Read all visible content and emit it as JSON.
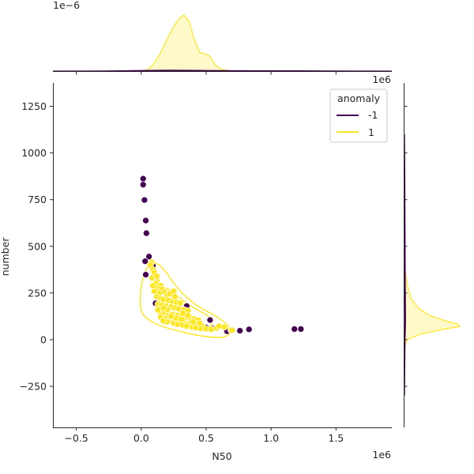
{
  "chart_data": {
    "type": "scatter",
    "xlabel": "N50",
    "ylabel": "number",
    "x_offset_label": "1e6",
    "y_offset_label": "",
    "x_ticks": [
      -0.5,
      0.0,
      0.5,
      1.0,
      1.5
    ],
    "x_tick_labels": [
      "−0.5",
      "0.0",
      "0.5",
      "1.0",
      "1.5"
    ],
    "y_ticks": [
      -250,
      0,
      250,
      500,
      750,
      1000,
      1250
    ],
    "y_tick_labels": [
      "−250",
      "0",
      "250",
      "500",
      "750",
      "1000",
      "1250"
    ],
    "xlim": [
      -0.68,
      1.93
    ],
    "ylim": [
      -470,
      1375
    ],
    "grid": false,
    "legend": {
      "title": "anomaly",
      "placement": "top-right",
      "entries": [
        {
          "label": "-1",
          "color": "#440154"
        },
        {
          "label": "1",
          "color": "#fde725"
        }
      ]
    },
    "series": [
      {
        "name": "-1",
        "color": "#440154",
        "points": [
          [
            0.015,
            862
          ],
          [
            0.015,
            830
          ],
          [
            0.025,
            748
          ],
          [
            0.035,
            638
          ],
          [
            0.04,
            570
          ],
          [
            0.06,
            445
          ],
          [
            0.03,
            420
          ],
          [
            0.035,
            348
          ],
          [
            0.09,
            395
          ],
          [
            0.35,
            180
          ],
          [
            0.53,
            105
          ],
          [
            0.66,
            45
          ],
          [
            0.76,
            48
          ],
          [
            0.83,
            55
          ],
          [
            1.18,
            57
          ],
          [
            1.23,
            57
          ],
          [
            0.5,
            65
          ],
          [
            0.11,
            195
          ],
          [
            0.29,
            100
          ],
          [
            0.42,
            75
          ],
          [
            0.55,
            60
          ]
        ]
      },
      {
        "name": "1",
        "color": "#fde725",
        "points": [
          [
            0.08,
            415
          ],
          [
            0.07,
            400
          ],
          [
            0.09,
            375
          ],
          [
            0.1,
            360
          ],
          [
            0.085,
            330
          ],
          [
            0.12,
            315
          ],
          [
            0.11,
            300
          ],
          [
            0.15,
            290
          ],
          [
            0.13,
            275
          ],
          [
            0.16,
            270
          ],
          [
            0.14,
            250
          ],
          [
            0.18,
            255
          ],
          [
            0.2,
            240
          ],
          [
            0.22,
            245
          ],
          [
            0.25,
            260
          ],
          [
            0.12,
            230
          ],
          [
            0.15,
            220
          ],
          [
            0.17,
            215
          ],
          [
            0.21,
            210
          ],
          [
            0.24,
            205
          ],
          [
            0.27,
            200
          ],
          [
            0.3,
            195
          ],
          [
            0.13,
            190
          ],
          [
            0.16,
            185
          ],
          [
            0.19,
            180
          ],
          [
            0.23,
            175
          ],
          [
            0.26,
            170
          ],
          [
            0.29,
            165
          ],
          [
            0.33,
            160
          ],
          [
            0.36,
            155
          ],
          [
            0.14,
            150
          ],
          [
            0.18,
            145
          ],
          [
            0.21,
            140
          ],
          [
            0.24,
            135
          ],
          [
            0.28,
            130
          ],
          [
            0.31,
            125
          ],
          [
            0.34,
            120
          ],
          [
            0.38,
            115
          ],
          [
            0.41,
            110
          ],
          [
            0.44,
            105
          ],
          [
            0.15,
            120
          ],
          [
            0.19,
            112
          ],
          [
            0.22,
            105
          ],
          [
            0.26,
            100
          ],
          [
            0.3,
            95
          ],
          [
            0.33,
            90
          ],
          [
            0.37,
            85
          ],
          [
            0.4,
            80
          ],
          [
            0.43,
            78
          ],
          [
            0.47,
            75
          ],
          [
            0.2,
            95
          ],
          [
            0.25,
            88
          ],
          [
            0.28,
            82
          ],
          [
            0.32,
            78
          ],
          [
            0.35,
            72
          ],
          [
            0.39,
            68
          ],
          [
            0.42,
            64
          ],
          [
            0.46,
            60
          ],
          [
            0.5,
            58
          ],
          [
            0.54,
            55
          ],
          [
            0.58,
            62
          ],
          [
            0.6,
            72
          ],
          [
            0.64,
            68
          ],
          [
            0.69,
            52
          ],
          [
            0.7,
            50
          ],
          [
            0.17,
            100
          ],
          [
            0.13,
            160
          ],
          [
            0.1,
            260
          ],
          [
            0.12,
            340
          ],
          [
            0.09,
            290
          ],
          [
            0.26,
            230
          ],
          [
            0.32,
            140
          ],
          [
            0.36,
            130
          ],
          [
            0.4,
            95
          ],
          [
            0.45,
            88
          ],
          [
            0.27,
            115
          ],
          [
            0.23,
            125
          ],
          [
            0.2,
            160
          ],
          [
            0.17,
            170
          ],
          [
            0.31,
            108
          ]
        ]
      }
    ],
    "marginal": {
      "top_offset_label": "1e−6",
      "top_series": [
        {
          "name": "1",
          "color": "#fde725",
          "x": [
            0.0,
            0.05,
            0.1,
            0.15,
            0.2,
            0.25,
            0.3,
            0.33,
            0.37,
            0.4,
            0.45,
            0.5,
            0.53,
            0.57,
            0.62,
            0.7
          ],
          "density": [
            0.0,
            0.05,
            0.25,
            0.6,
            1.05,
            1.45,
            1.75,
            1.82,
            1.6,
            1.15,
            0.6,
            0.55,
            0.48,
            0.2,
            0.05,
            0.0
          ]
        },
        {
          "name": "-1",
          "color": "#440154",
          "x": [
            -0.68,
            -0.3,
            0.0,
            0.2,
            0.5,
            0.8,
            1.0,
            1.2,
            1.5,
            1.93
          ],
          "density": [
            0.0,
            0.005,
            0.02,
            0.03,
            0.02,
            0.012,
            0.01,
            0.01,
            0.004,
            0.0
          ]
        }
      ],
      "right_series": [
        {
          "name": "1",
          "color": "#fde725",
          "y": [
            -40,
            0,
            30,
            55,
            70,
            85,
            100,
            130,
            170,
            220,
            280,
            350,
            420
          ],
          "density": [
            0.0,
            0.05,
            0.3,
            0.7,
            1.0,
            0.95,
            0.75,
            0.45,
            0.25,
            0.12,
            0.06,
            0.02,
            0.0
          ]
        },
        {
          "name": "-1",
          "color": "#440154",
          "y": [
            -300,
            0,
            100,
            300,
            600,
            900,
            1100
          ],
          "density": [
            0.0,
            0.01,
            0.02,
            0.015,
            0.01,
            0.005,
            0.0
          ]
        }
      ]
    }
  }
}
